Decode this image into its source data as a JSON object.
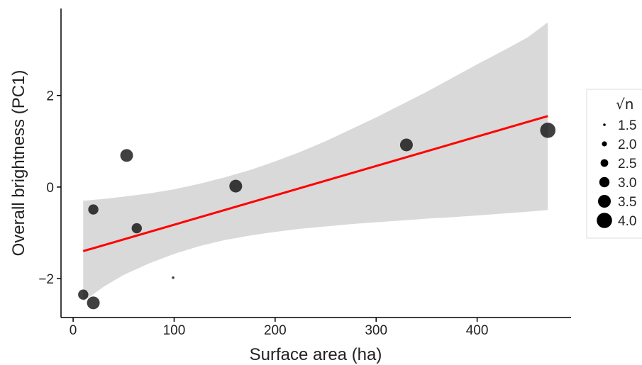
{
  "chart_data": {
    "type": "scatter",
    "xlabel": "Surface area (ha)",
    "ylabel": "Overall brightness (PC1)",
    "xlim": [
      -12,
      493
    ],
    "ylim": [
      -2.85,
      3.9
    ],
    "x_ticks": [
      0,
      100,
      200,
      300,
      400
    ],
    "y_ticks": [
      -2,
      0,
      2
    ],
    "y_tick_labels": [
      "−2",
      "0",
      "2"
    ],
    "grid": false,
    "legend": {
      "title": "√n",
      "placement": "right",
      "entries": [
        {
          "label": "1.5",
          "value": 1.5
        },
        {
          "label": "2.0",
          "value": 2.0
        },
        {
          "label": "2.5",
          "value": 2.5
        },
        {
          "label": "3.0",
          "value": 3.0
        },
        {
          "label": "3.5",
          "value": 3.5
        },
        {
          "label": "4.0",
          "value": 4.0
        }
      ]
    },
    "points": [
      {
        "x": 10,
        "y": -2.35,
        "sqrt_n": 3.0
      },
      {
        "x": 20,
        "y": -0.49,
        "sqrt_n": 3.0
      },
      {
        "x": 20,
        "y": -2.53,
        "sqrt_n": 3.5
      },
      {
        "x": 53,
        "y": 0.69,
        "sqrt_n": 3.5
      },
      {
        "x": 63,
        "y": -0.9,
        "sqrt_n": 3.0
      },
      {
        "x": 99,
        "y": -1.98,
        "sqrt_n": 1.5
      },
      {
        "x": 161,
        "y": 0.02,
        "sqrt_n": 3.5
      },
      {
        "x": 330,
        "y": 0.92,
        "sqrt_n": 3.5
      },
      {
        "x": 470,
        "y": 1.24,
        "sqrt_n": 4.0
      }
    ],
    "fit_line": {
      "x": [
        10,
        470
      ],
      "y": [
        -1.4,
        1.55
      ],
      "color": "#ff0000"
    },
    "confidence_band": {
      "x": [
        10,
        30,
        50,
        75,
        100,
        125,
        150,
        175,
        200,
        225,
        250,
        275,
        300,
        325,
        350,
        375,
        400,
        425,
        450,
        470
      ],
      "lower": [
        -2.5,
        -2.18,
        -1.92,
        -1.67,
        -1.46,
        -1.29,
        -1.16,
        -1.06,
        -0.98,
        -0.91,
        -0.86,
        -0.81,
        -0.77,
        -0.73,
        -0.69,
        -0.66,
        -0.62,
        -0.58,
        -0.54,
        -0.5
      ],
      "upper": [
        -0.3,
        -0.26,
        -0.21,
        -0.14,
        -0.05,
        0.07,
        0.21,
        0.37,
        0.56,
        0.77,
        1.0,
        1.26,
        1.52,
        1.8,
        2.08,
        2.38,
        2.68,
        2.97,
        3.27,
        3.6
      ],
      "color": "#d9d9d9"
    },
    "colors": {
      "point": "#000000",
      "point_alpha": 0.75,
      "line": "#ff0000",
      "band": "#d9d9d9",
      "axis": "#000000"
    }
  }
}
